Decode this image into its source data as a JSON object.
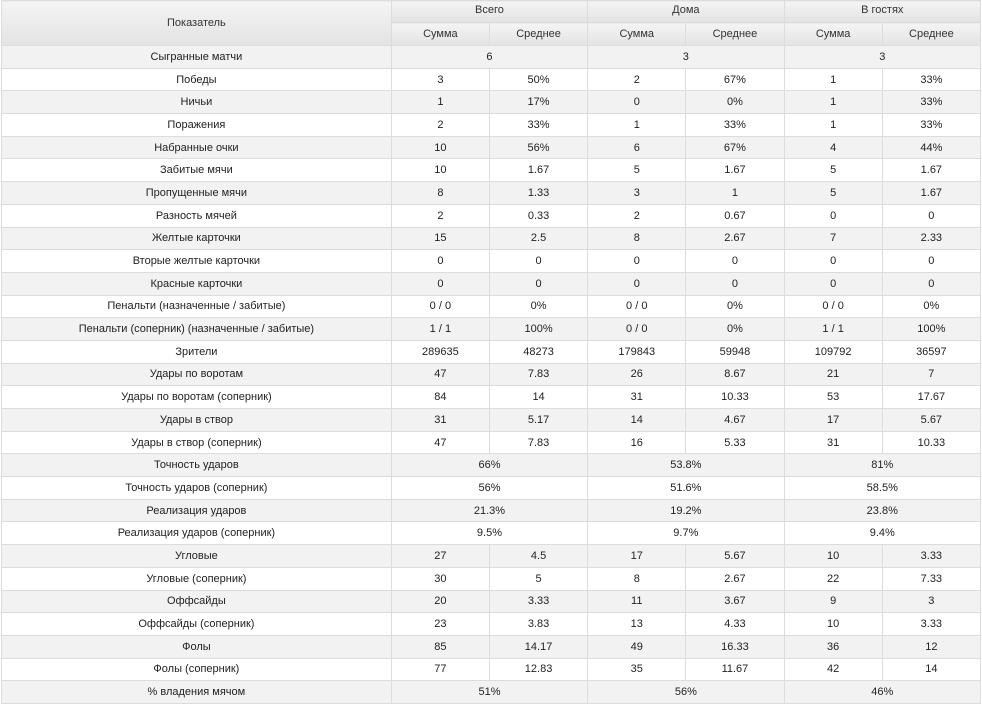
{
  "header": {
    "metric_label": "Показатель",
    "groups": [
      "Всего",
      "Дома",
      "В гостях"
    ],
    "sub_sum": "Сумма",
    "sub_avg": "Среднее"
  },
  "rows": [
    {
      "name": "Сыгранные матчи",
      "merged": true,
      "values": [
        "6",
        "3",
        "3"
      ]
    },
    {
      "name": "Победы",
      "values": [
        "3",
        "50%",
        "2",
        "67%",
        "1",
        "33%"
      ]
    },
    {
      "name": "Ничьи",
      "values": [
        "1",
        "17%",
        "0",
        "0%",
        "1",
        "33%"
      ]
    },
    {
      "name": "Поражения",
      "values": [
        "2",
        "33%",
        "1",
        "33%",
        "1",
        "33%"
      ]
    },
    {
      "name": "Набранные очки",
      "values": [
        "10",
        "56%",
        "6",
        "67%",
        "4",
        "44%"
      ]
    },
    {
      "name": "Забитые мячи",
      "values": [
        "10",
        "1.67",
        "5",
        "1.67",
        "5",
        "1.67"
      ]
    },
    {
      "name": "Пропущенные мячи",
      "values": [
        "8",
        "1.33",
        "3",
        "1",
        "5",
        "1.67"
      ]
    },
    {
      "name": "Разность мячей",
      "values": [
        "2",
        "0.33",
        "2",
        "0.67",
        "0",
        "0"
      ]
    },
    {
      "name": "Желтые карточки",
      "values": [
        "15",
        "2.5",
        "8",
        "2.67",
        "7",
        "2.33"
      ]
    },
    {
      "name": "Вторые желтые карточки",
      "values": [
        "0",
        "0",
        "0",
        "0",
        "0",
        "0"
      ]
    },
    {
      "name": "Красные карточки",
      "values": [
        "0",
        "0",
        "0",
        "0",
        "0",
        "0"
      ]
    },
    {
      "name": "Пенальти (назначенные / забитые)",
      "values": [
        "0 / 0",
        "0%",
        "0 / 0",
        "0%",
        "0 / 0",
        "0%"
      ]
    },
    {
      "name": "Пенальти (соперник) (назначенные / забитые)",
      "values": [
        "1 / 1",
        "100%",
        "0 / 0",
        "0%",
        "1 / 1",
        "100%"
      ]
    },
    {
      "name": "Зрители",
      "values": [
        "289635",
        "48273",
        "179843",
        "59948",
        "109792",
        "36597"
      ]
    },
    {
      "name": "Удары по воротам",
      "values": [
        "47",
        "7.83",
        "26",
        "8.67",
        "21",
        "7"
      ]
    },
    {
      "name": "Удары по воротам (соперник)",
      "values": [
        "84",
        "14",
        "31",
        "10.33",
        "53",
        "17.67"
      ]
    },
    {
      "name": "Удары в створ",
      "values": [
        "31",
        "5.17",
        "14",
        "4.67",
        "17",
        "5.67"
      ]
    },
    {
      "name": "Удары в створ (соперник)",
      "values": [
        "47",
        "7.83",
        "16",
        "5.33",
        "31",
        "10.33"
      ]
    },
    {
      "name": "Точность ударов",
      "merged": true,
      "values": [
        "66%",
        "53.8%",
        "81%"
      ]
    },
    {
      "name": "Точность ударов (соперник)",
      "merged": true,
      "values": [
        "56%",
        "51.6%",
        "58.5%"
      ]
    },
    {
      "name": "Реализация ударов",
      "merged": true,
      "values": [
        "21.3%",
        "19.2%",
        "23.8%"
      ]
    },
    {
      "name": "Реализация ударов (соперник)",
      "merged": true,
      "values": [
        "9.5%",
        "9.7%",
        "9.4%"
      ]
    },
    {
      "name": "Угловые",
      "values": [
        "27",
        "4.5",
        "17",
        "5.67",
        "10",
        "3.33"
      ]
    },
    {
      "name": "Угловые (соперник)",
      "values": [
        "30",
        "5",
        "8",
        "2.67",
        "22",
        "7.33"
      ]
    },
    {
      "name": "Оффсайды",
      "values": [
        "20",
        "3.33",
        "11",
        "3.67",
        "9",
        "3"
      ]
    },
    {
      "name": "Оффсайды (соперник)",
      "values": [
        "23",
        "3.83",
        "13",
        "4.33",
        "10",
        "3.33"
      ]
    },
    {
      "name": "Фолы",
      "values": [
        "85",
        "14.17",
        "49",
        "16.33",
        "36",
        "12"
      ]
    },
    {
      "name": "Фолы (соперник)",
      "values": [
        "77",
        "12.83",
        "35",
        "11.67",
        "42",
        "14"
      ]
    },
    {
      "name": "% владения мячом",
      "merged": true,
      "values": [
        "51%",
        "56%",
        "46%"
      ]
    }
  ]
}
